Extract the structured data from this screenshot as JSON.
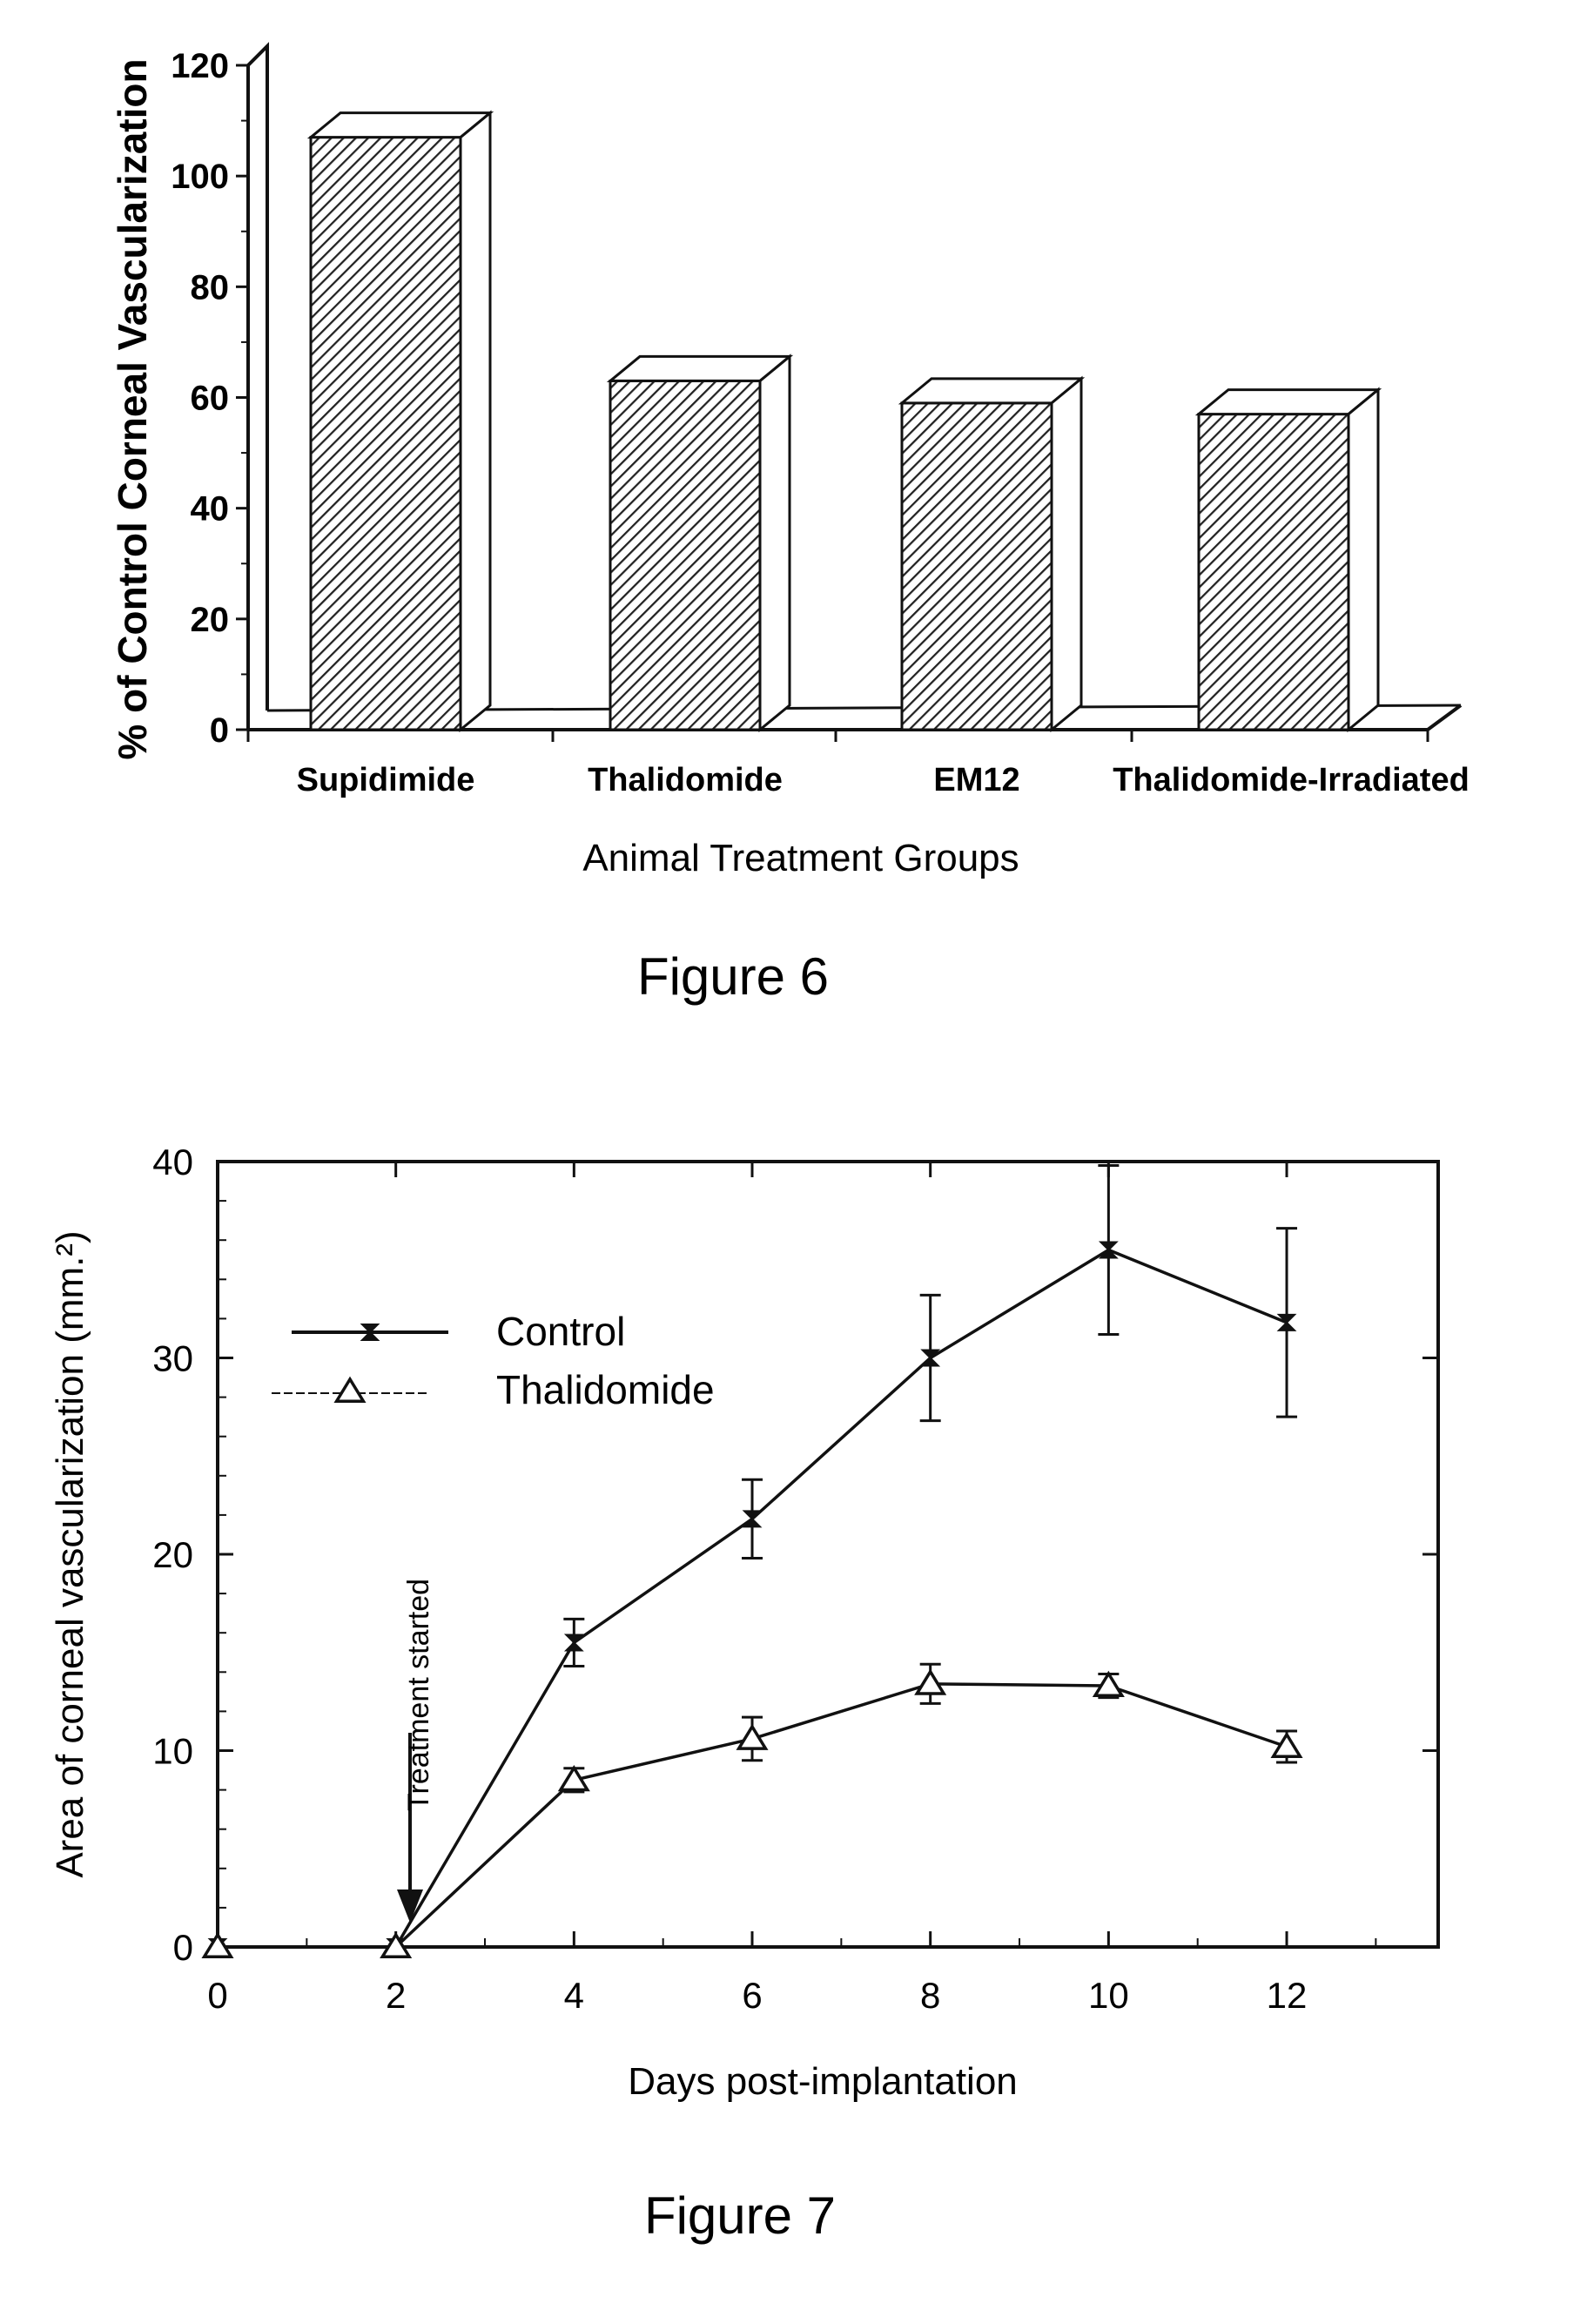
{
  "figure6": {
    "caption": "Figure 6",
    "chart_data": {
      "type": "bar",
      "categories": [
        "Supidimide",
        "Thalidomide",
        "EM12",
        "Thalidomide-Irradiated"
      ],
      "values": [
        107,
        63,
        59,
        57
      ],
      "xlabel": "Animal Treatment Groups",
      "ylabel": "% of Control Corneal Vascularization",
      "ylim": [
        0,
        120
      ],
      "yticks": [
        0,
        20,
        40,
        60,
        80,
        100,
        120
      ],
      "grid": false,
      "style": "3d-hatched",
      "bar_color": "#222222"
    }
  },
  "figure7": {
    "caption": "Figure 7",
    "chart_data": {
      "type": "line",
      "x": [
        0,
        2,
        4,
        6,
        8,
        10,
        12
      ],
      "series": [
        {
          "name": "Control",
          "marker": "hourglass",
          "values": [
            0,
            0,
            15.5,
            21.8,
            30,
            35.5,
            31.8
          ],
          "errors": [
            0,
            0,
            1.2,
            2.0,
            3.2,
            4.3,
            4.8
          ]
        },
        {
          "name": "Thalidomide",
          "marker": "triangle",
          "values": [
            0,
            0,
            8.5,
            10.6,
            13.4,
            13.3,
            10.2
          ],
          "errors": [
            0,
            0,
            0.6,
            1.1,
            1.0,
            0.6,
            0.8
          ]
        }
      ],
      "xlabel": "Days post-implantation",
      "ylabel": "Area of corneal vascularization (mm.²)",
      "xlim": [
        0,
        13.7
      ],
      "ylim": [
        0,
        40
      ],
      "xticks": [
        0,
        2,
        4,
        6,
        8,
        10,
        12
      ],
      "yticks": [
        0,
        10,
        20,
        30,
        40
      ],
      "grid": false,
      "legend": "upper-left",
      "annotation": {
        "text": "Treatment started",
        "x": 2
      }
    }
  }
}
